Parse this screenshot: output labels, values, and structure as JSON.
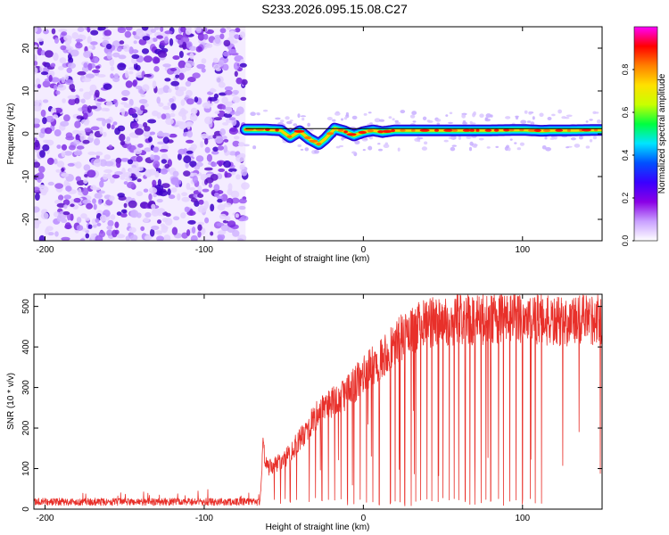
{
  "figure_title": "S233.2026.095.15.08.C27",
  "chart_data": [
    {
      "type": "heatmap",
      "title": "S233.2026.095.15.08.C27",
      "xlabel": "Height of straight line (km)",
      "ylabel": "Frequency (Hz)",
      "xlim": [
        -207,
        150
      ],
      "ylim": [
        -25,
        25
      ],
      "xticks": [
        -200,
        -100,
        0,
        100
      ],
      "xtick_labels": [
        "-200",
        "-100",
        "0",
        "100"
      ],
      "yticks": [
        -20,
        -10,
        0,
        10,
        20
      ],
      "ytick_labels": [
        "-20",
        "-10",
        "0",
        "10",
        "20"
      ],
      "noise_region_x": [
        -207,
        -74
      ],
      "signal_region_x": [
        -74,
        150
      ],
      "ridge": {
        "x": [
          -74,
          -62,
          -52,
          -46,
          -40,
          -34,
          -28,
          -24,
          -18,
          -12,
          -6,
          0,
          6,
          12,
          20,
          30,
          50,
          80,
          100,
          112,
          120,
          130,
          150
        ],
        "frequency": [
          1,
          1,
          0.8,
          -0.8,
          0.6,
          -1.2,
          -2.4,
          -1.2,
          1.2,
          0.6,
          -0.4,
          0.4,
          0.8,
          0.4,
          0.8,
          0.8,
          0.8,
          0.8,
          0.9,
          0.7,
          0.8,
          0.8,
          0.9
        ]
      },
      "colorbar": {
        "label": "Normalized spectral amplitude",
        "min": 0.0,
        "max": 1.0,
        "ticks": [
          0.0,
          0.2,
          0.4,
          0.6,
          0.8
        ],
        "tick_labels": [
          "0.0",
          "0.2",
          "0.4",
          "0.6",
          "0.8"
        ],
        "colors": [
          "#ffffff",
          "#c9a0ff",
          "#8a00e6",
          "#3a00ff",
          "#0050ff",
          "#00e5ff",
          "#00ff40",
          "#c8ff00",
          "#ffe000",
          "#ff8000",
          "#ff0000",
          "#ff00ff"
        ]
      }
    },
    {
      "type": "line",
      "xlabel": "Height of straight line (km)",
      "ylabel": "SNR (10 * v/v)",
      "xlim": [
        -207,
        150
      ],
      "ylim": [
        0,
        530
      ],
      "xticks": [
        -200,
        -100,
        0,
        100
      ],
      "xtick_labels": [
        "-200",
        "-100",
        "0",
        "100"
      ],
      "yticks": [
        0,
        100,
        200,
        300,
        400,
        500
      ],
      "ytick_labels": [
        "0",
        "100",
        "200",
        "300",
        "400",
        "500"
      ],
      "color": "#e8302a",
      "trend": {
        "x": [
          -207,
          -65,
          -63,
          -60,
          -50,
          -40,
          -30,
          -20,
          -10,
          0,
          10,
          20,
          30,
          40,
          50,
          80,
          100,
          120,
          150
        ],
        "y": [
          18,
          18,
          150,
          100,
          120,
          170,
          230,
          260,
          290,
          330,
          370,
          410,
          440,
          460,
          465,
          470,
          475,
          460,
          470
        ]
      },
      "dropouts_x": [
        -56,
        -52,
        -46,
        -42,
        -34,
        -30,
        -26,
        -22,
        -18,
        -14,
        -10,
        -6,
        -2,
        2,
        6,
        10,
        17,
        20,
        23,
        26,
        30,
        33,
        36,
        40,
        43,
        47,
        50,
        54,
        57,
        60,
        64,
        67,
        70,
        74,
        77,
        80,
        85,
        88,
        92,
        96,
        100,
        105,
        108,
        112
      ]
    }
  ]
}
